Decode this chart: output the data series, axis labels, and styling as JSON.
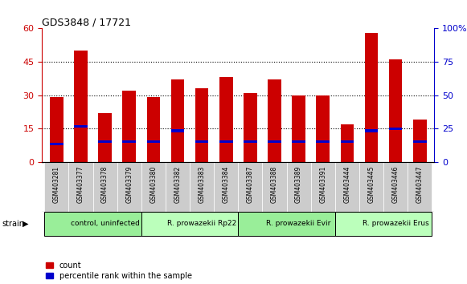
{
  "title": "GDS3848 / 17721",
  "samples": [
    "GSM403281",
    "GSM403377",
    "GSM403378",
    "GSM403379",
    "GSM403380",
    "GSM403382",
    "GSM403383",
    "GSM403384",
    "GSM403387",
    "GSM403388",
    "GSM403389",
    "GSM403391",
    "GSM403444",
    "GSM403445",
    "GSM403446",
    "GSM403447"
  ],
  "count_values": [
    29,
    50,
    22,
    32,
    29,
    37,
    33,
    38,
    31,
    37,
    30,
    30,
    17,
    58,
    46,
    19
  ],
  "percentile_values": [
    8,
    16,
    9,
    9,
    9,
    14,
    9,
    9,
    9,
    9,
    9,
    9,
    9,
    14,
    15,
    9
  ],
  "percentile_thickness": 1.5,
  "left_ylim": [
    0,
    60
  ],
  "right_ylim": [
    0,
    100
  ],
  "left_yticks": [
    0,
    15,
    30,
    45,
    60
  ],
  "right_yticks": [
    0,
    25,
    50,
    75,
    100
  ],
  "right_yticklabels": [
    "0",
    "25",
    "50",
    "75",
    "100%"
  ],
  "bar_color_red": "#cc0000",
  "bar_color_blue": "#0000cc",
  "grid_color": "black",
  "groups": [
    {
      "label": "control, uninfected",
      "start": 0,
      "end": 4,
      "color": "#99ee99"
    },
    {
      "label": "R. prowazekii Rp22",
      "start": 4,
      "end": 8,
      "color": "#bbffbb"
    },
    {
      "label": "R. prowazekii Evir",
      "start": 8,
      "end": 12,
      "color": "#99ee99"
    },
    {
      "label": "R. prowazekii Erus",
      "start": 12,
      "end": 16,
      "color": "#bbffbb"
    }
  ],
  "legend_count_label": "count",
  "legend_percentile_label": "percentile rank within the sample",
  "strain_label": "strain",
  "left_yaxis_color": "#cc0000",
  "right_yaxis_color": "#0000cc",
  "bar_width": 0.55,
  "sample_box_color": "#cccccc",
  "fig_width": 5.81,
  "fig_height": 3.54,
  "fig_dpi": 100
}
